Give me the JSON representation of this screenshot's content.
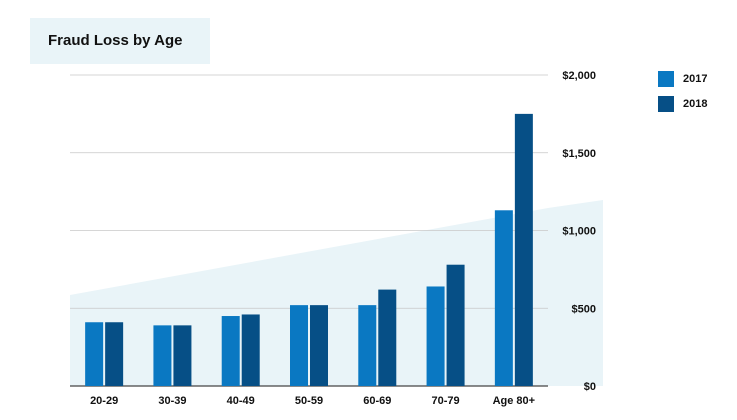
{
  "chart_data": {
    "type": "bar",
    "title": "Fraud Loss by Age",
    "categories": [
      "20-29",
      "30-39",
      "40-49",
      "50-59",
      "60-69",
      "70-79",
      "Age 80+"
    ],
    "series": [
      {
        "name": "2017",
        "color": "#0a78c2",
        "values": [
          410,
          390,
          450,
          520,
          520,
          640,
          1130
        ]
      },
      {
        "name": "2018",
        "color": "#064f86",
        "values": [
          410,
          390,
          460,
          520,
          620,
          780,
          1750
        ]
      }
    ],
    "yticks": [
      "$0",
      "$500",
      "$1,000",
      "$1,500",
      "$2,000"
    ],
    "ylim": [
      0,
      2000
    ],
    "grid": true,
    "legend_position": "right",
    "colors": {
      "gridline": "#c8c8c8",
      "axis": "#444444",
      "background_wedge": "#e9f4f8"
    }
  }
}
